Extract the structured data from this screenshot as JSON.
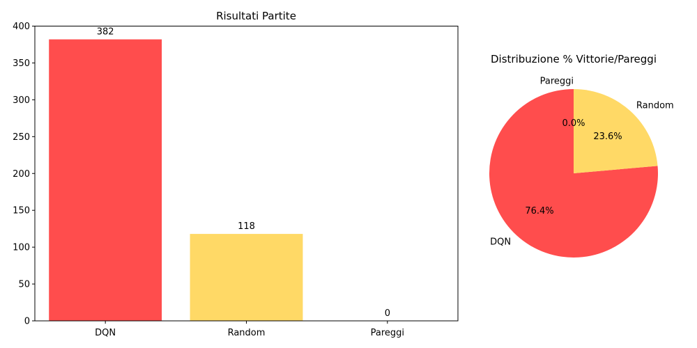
{
  "chart_data": [
    {
      "type": "bar",
      "title": "Risultati Partite",
      "xlabel": "",
      "ylabel": "",
      "categories": [
        "DQN",
        "Random",
        "Pareggi"
      ],
      "values": [
        382,
        118,
        0
      ],
      "data_labels": [
        "382",
        "118",
        "0"
      ],
      "colors": [
        "#ff4d4d",
        "#ffd966",
        "#cccccc"
      ],
      "ylim": [
        0,
        400
      ],
      "yticks": [
        0,
        50,
        100,
        150,
        200,
        250,
        300,
        350,
        400
      ],
      "grid": false
    },
    {
      "type": "pie",
      "title": "Distribuzione % Vittorie/Pareggi",
      "labels": [
        "DQN",
        "Random",
        "Pareggi"
      ],
      "values": [
        76.4,
        23.6,
        0.0
      ],
      "pct_labels": [
        "76.4%",
        "23.6%",
        "0.0%"
      ],
      "colors": [
        "#ff4d4d",
        "#ffd966",
        "#cccccc"
      ]
    }
  ]
}
